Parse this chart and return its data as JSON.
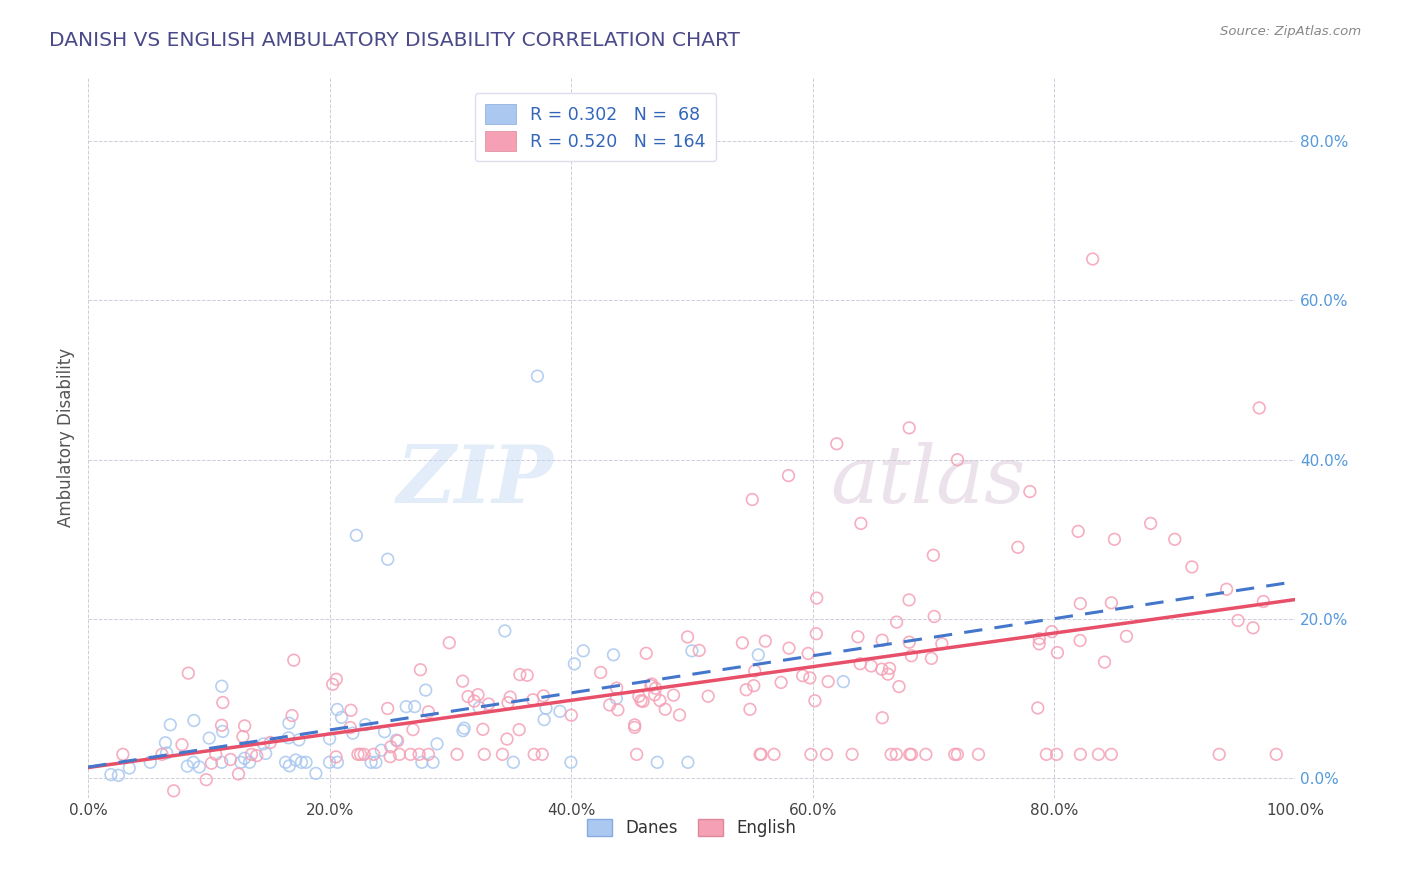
{
  "title": "DANISH VS ENGLISH AMBULATORY DISABILITY CORRELATION CHART",
  "source": "Source: ZipAtlas.com",
  "ylabel": "Ambulatory Disability",
  "xlim": [
    0,
    1
  ],
  "ylim": [
    -0.025,
    0.88
  ],
  "xtick_labels": [
    "0.0%",
    "20.0%",
    "40.0%",
    "60.0%",
    "80.0%",
    "100.0%"
  ],
  "xtick_vals": [
    0,
    0.2,
    0.4,
    0.6,
    0.8,
    1.0
  ],
  "ytick_labels": [
    "",
    "",
    "",
    "",
    ""
  ],
  "ytick_vals": [
    0,
    0.2,
    0.4,
    0.6,
    0.8
  ],
  "danish_color": "#aac8f0",
  "english_color": "#f5a0b5",
  "danish_line_color": "#4477cc",
  "english_line_color": "#e8506a",
  "danish_R": 0.302,
  "danish_N": 68,
  "english_R": 0.52,
  "english_N": 164,
  "legend_label_danish": "Danes",
  "legend_label_english": "English",
  "watermark_ZIP": "ZIP",
  "watermark_atlas": "atlas",
  "background_color": "#ffffff",
  "grid_color": "#c8c8d8",
  "title_color": "#4a4a8a",
  "right_axis_color": "#5599dd",
  "right_ytick_labels": [
    "0.0%",
    "20.0%",
    "40.0%",
    "60.0%",
    "80.0%"
  ],
  "right_ytick_vals": [
    0,
    0.2,
    0.4,
    0.6,
    0.8
  ],
  "legend_R_color": "#3366bb",
  "legend_N_color": "#3366bb"
}
